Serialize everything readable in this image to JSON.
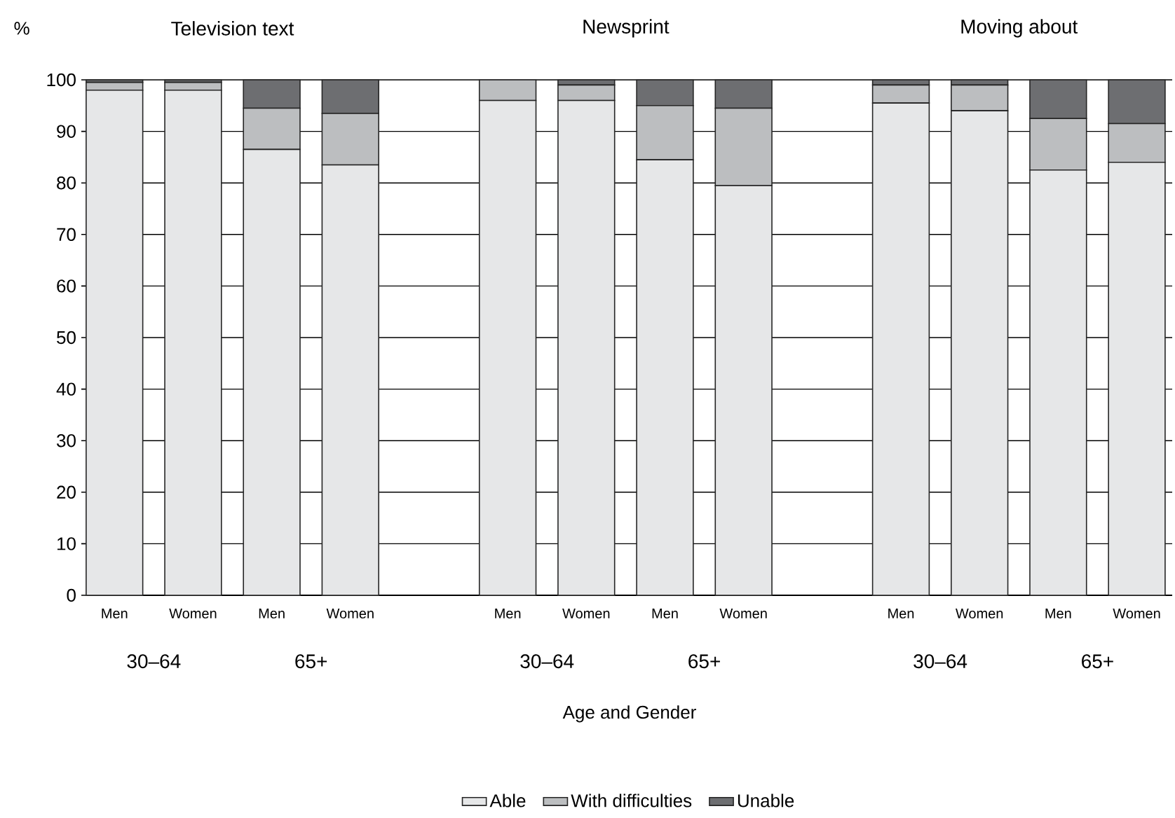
{
  "chart_data": {
    "type": "bar",
    "stacked": true,
    "categories": [
      "Men",
      "Women",
      "Men",
      "Women",
      null,
      "Men",
      "Women",
      "Men",
      "Women",
      null,
      "Men",
      "Women",
      "Men",
      "Women"
    ],
    "series": [
      {
        "name": "Able",
        "color": "#e6e7e8",
        "values": [
          98,
          98,
          86.5,
          83.5,
          null,
          96,
          96,
          84.5,
          79.5,
          null,
          95.5,
          94,
          82.5,
          84
        ]
      },
      {
        "name": "With difficulties",
        "color": "#bcbec0",
        "values": [
          1.5,
          1.5,
          8,
          10,
          null,
          4,
          3,
          10.5,
          15,
          null,
          3.5,
          5,
          10,
          7.5
        ]
      },
      {
        "name": "Unable",
        "color": "#6d6e71",
        "values": [
          0.5,
          0.5,
          5.5,
          6.5,
          null,
          0,
          1,
          5,
          5.5,
          null,
          1,
          1,
          7.5,
          8.5
        ]
      }
    ],
    "ylabel": "%",
    "xlabel": "Age and Gender",
    "annotations": [
      "Television text",
      "Newsprint",
      "Moving about",
      "30–64",
      "65+",
      "30–64",
      "65+",
      "30–64",
      "65+"
    ],
    "ylim": [
      0,
      100
    ],
    "yticks": [
      0,
      10,
      20,
      30,
      40,
      50,
      60,
      70,
      80,
      90,
      100
    ],
    "grid": "y",
    "legend": "bottom"
  }
}
